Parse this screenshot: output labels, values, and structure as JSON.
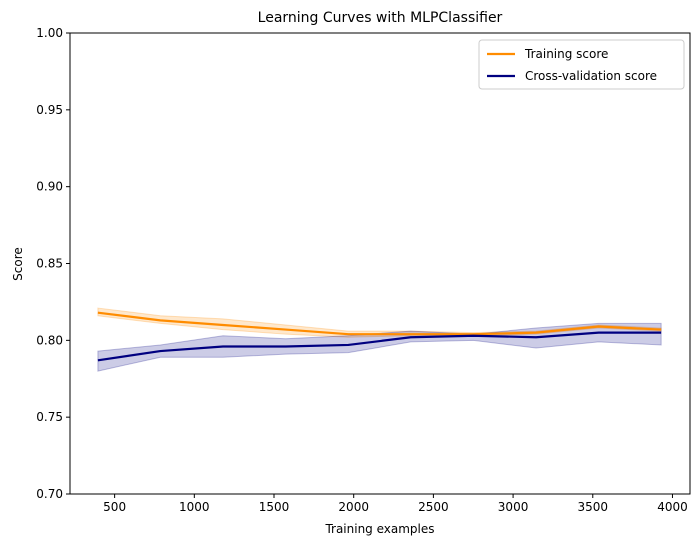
{
  "chart_data": {
    "type": "line",
    "title": "Learning Curves with MLPClassifier",
    "xlabel": "Training examples",
    "ylabel": "Score",
    "xlim": [
      220,
      4110
    ],
    "ylim": [
      0.7,
      1.0
    ],
    "xticks": [
      500,
      1000,
      1500,
      2000,
      2500,
      3000,
      3500,
      4000
    ],
    "yticks": [
      0.7,
      0.75,
      0.8,
      0.85,
      0.9,
      0.95,
      1.0
    ],
    "grid": false,
    "legend_position": "top-right",
    "x": [
      395,
      787,
      1180,
      1573,
      1966,
      2358,
      2751,
      3144,
      3537,
      3929
    ],
    "series": [
      {
        "name": "Training score",
        "color": "#ff8c00",
        "fill_color": "#ffc58a",
        "values": [
          0.818,
          0.813,
          0.81,
          0.807,
          0.804,
          0.804,
          0.804,
          0.805,
          0.809,
          0.807
        ],
        "lower": [
          0.816,
          0.811,
          0.807,
          0.804,
          0.802,
          0.803,
          0.803,
          0.804,
          0.808,
          0.806
        ],
        "upper": [
          0.821,
          0.816,
          0.814,
          0.81,
          0.806,
          0.806,
          0.805,
          0.806,
          0.81,
          0.808
        ]
      },
      {
        "name": "Cross-validation score",
        "color": "#000080",
        "fill_color": "#b8b8e0",
        "values": [
          0.787,
          0.793,
          0.796,
          0.796,
          0.797,
          0.802,
          0.803,
          0.802,
          0.805,
          0.805
        ],
        "lower": [
          0.78,
          0.789,
          0.789,
          0.791,
          0.792,
          0.799,
          0.8,
          0.795,
          0.799,
          0.797
        ],
        "upper": [
          0.793,
          0.797,
          0.803,
          0.801,
          0.803,
          0.806,
          0.804,
          0.808,
          0.811,
          0.811
        ]
      }
    ]
  }
}
